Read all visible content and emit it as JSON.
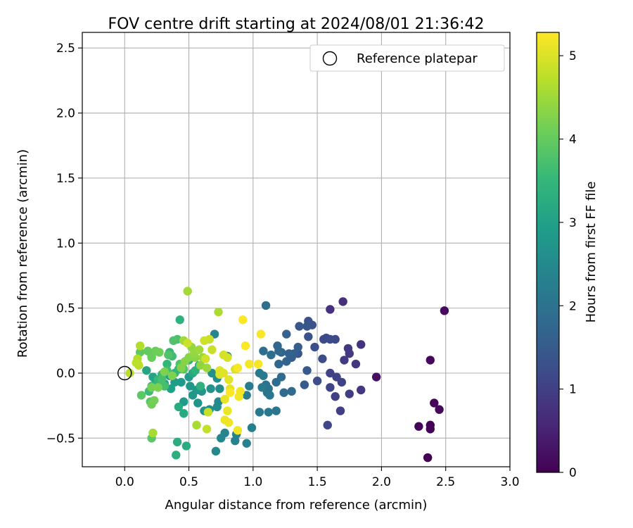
{
  "chart_data": {
    "type": "scatter",
    "title": "FOV centre drift starting at 2024/08/01 21:36:42",
    "xlabel": "Angular distance from reference (arcmin)",
    "ylabel": "Rotation from reference (arcmin)",
    "xlim": [
      -0.33,
      3.0
    ],
    "ylim": [
      -0.72,
      2.62
    ],
    "x_ticks": [
      0.0,
      0.5,
      1.0,
      1.5,
      2.0,
      2.5,
      3.0
    ],
    "x_tick_labels": [
      "0.0",
      "0.5",
      "1.0",
      "1.5",
      "2.0",
      "2.5",
      "3.0"
    ],
    "y_ticks": [
      -0.5,
      0.0,
      0.5,
      1.0,
      1.5,
      2.0,
      2.5
    ],
    "y_tick_labels": [
      "−0.5",
      "0.0",
      "0.5",
      "1.0",
      "1.5",
      "2.0",
      "2.5"
    ],
    "grid": true,
    "legend": {
      "placement": "top-right",
      "entries": [
        "Reference platepar"
      ]
    },
    "reference_point": {
      "x": 0.0,
      "y": 0.0,
      "label": "Reference platepar"
    },
    "colorbar": {
      "label": "Hours from first FF file",
      "colormap": "viridis",
      "range": [
        0,
        5.28
      ],
      "ticks": [
        0,
        1,
        2,
        3,
        4,
        5
      ],
      "tick_labels": [
        "0",
        "1",
        "2",
        "3",
        "4",
        "5"
      ],
      "stops": [
        "#440154",
        "#482878",
        "#3e4a89",
        "#31688e",
        "#26828e",
        "#1f9e89",
        "#35b779",
        "#6ece58",
        "#b5de2b",
        "#fde725"
      ]
    },
    "series": [
      {
        "color_by": "hours",
        "points": [
          [
            2.36,
            -0.65,
            0.0
          ],
          [
            2.38,
            -0.4,
            0.02
          ],
          [
            2.38,
            -0.43,
            0.04
          ],
          [
            2.29,
            -0.41,
            0.06
          ],
          [
            2.41,
            -0.23,
            0.08
          ],
          [
            2.45,
            -0.28,
            0.1
          ],
          [
            2.38,
            0.1,
            0.12
          ],
          [
            2.49,
            0.48,
            0.14
          ],
          [
            1.96,
            -0.03,
            0.2
          ],
          [
            1.7,
            0.55,
            0.7
          ],
          [
            1.6,
            0.49,
            0.75
          ],
          [
            1.84,
            0.22,
            0.8
          ],
          [
            1.8,
            0.07,
            0.82
          ],
          [
            1.84,
            -0.13,
            0.85
          ],
          [
            1.74,
            0.19,
            0.88
          ],
          [
            1.75,
            0.15,
            0.9
          ],
          [
            1.71,
            0.1,
            0.92
          ],
          [
            1.75,
            -0.16,
            0.95
          ],
          [
            1.68,
            -0.29,
            0.97
          ],
          [
            1.64,
            -0.18,
            1.0
          ],
          [
            1.69,
            -0.07,
            1.02
          ],
          [
            1.65,
            -0.03,
            1.05
          ],
          [
            1.6,
            -0.0,
            1.07
          ],
          [
            1.6,
            -0.11,
            1.1
          ],
          [
            1.58,
            -0.4,
            1.12
          ],
          [
            1.64,
            0.26,
            1.15
          ],
          [
            1.6,
            0.26,
            1.17
          ],
          [
            1.57,
            0.27,
            1.2
          ],
          [
            1.55,
            0.26,
            1.22
          ],
          [
            1.54,
            0.11,
            1.25
          ],
          [
            1.5,
            -0.06,
            1.27
          ],
          [
            1.48,
            0.2,
            1.3
          ],
          [
            1.46,
            0.37,
            1.32
          ],
          [
            1.43,
            0.4,
            1.35
          ],
          [
            1.43,
            0.28,
            1.37
          ],
          [
            1.42,
            0.36,
            1.4
          ],
          [
            1.36,
            0.36,
            1.42
          ],
          [
            1.35,
            0.15,
            1.45
          ],
          [
            1.42,
            0.02,
            1.47
          ],
          [
            1.4,
            -0.09,
            1.5
          ],
          [
            1.35,
            0.2,
            1.55
          ],
          [
            1.32,
            0.15,
            1.58
          ],
          [
            1.3,
            0.12,
            1.6
          ],
          [
            1.26,
            0.3,
            1.63
          ],
          [
            1.28,
            0.15,
            1.65
          ],
          [
            1.26,
            0.09,
            1.68
          ],
          [
            1.22,
            0.16,
            1.7
          ],
          [
            1.19,
            0.21,
            1.72
          ],
          [
            1.2,
            0.07,
            1.75
          ],
          [
            1.2,
            0.17,
            1.77
          ],
          [
            1.3,
            -0.14,
            1.8
          ],
          [
            1.24,
            -0.15,
            1.82
          ],
          [
            1.22,
            -0.03,
            1.85
          ],
          [
            1.18,
            -0.07,
            1.87
          ],
          [
            1.14,
            0.14,
            1.9
          ],
          [
            1.1,
            0.52,
            1.92
          ],
          [
            1.08,
            0.17,
            1.95
          ],
          [
            1.11,
            -0.15,
            1.97
          ],
          [
            1.1,
            -0.09,
            2.0
          ],
          [
            1.12,
            -0.12,
            2.02
          ],
          [
            1.13,
            -0.17,
            2.05
          ],
          [
            1.18,
            -0.29,
            2.07
          ],
          [
            1.12,
            -0.3,
            2.1
          ],
          [
            1.05,
            -0.3,
            2.12
          ],
          [
            1.08,
            -0.02,
            2.15
          ],
          [
            1.05,
            0.0,
            2.17
          ],
          [
            1.07,
            -0.11,
            2.2
          ],
          [
            0.97,
            -0.1,
            2.22
          ],
          [
            0.95,
            -0.17,
            2.25
          ],
          [
            0.99,
            -0.42,
            2.27
          ],
          [
            0.95,
            -0.54,
            2.3
          ],
          [
            0.87,
            -0.47,
            2.32
          ],
          [
            0.86,
            -0.52,
            2.35
          ],
          [
            0.78,
            -0.46,
            2.38
          ],
          [
            0.7,
            0.3,
            2.42
          ],
          [
            0.75,
            -0.5,
            2.45
          ],
          [
            0.71,
            -0.6,
            2.48
          ],
          [
            0.8,
            0.13,
            2.5
          ],
          [
            0.73,
            -0.22,
            2.52
          ],
          [
            0.72,
            -0.26,
            2.55
          ],
          [
            0.74,
            -0.12,
            2.58
          ],
          [
            0.66,
            -0.28,
            2.6
          ],
          [
            0.72,
            -0.04,
            2.62
          ],
          [
            0.68,
            0.0,
            2.65
          ],
          [
            0.67,
            -0.12,
            2.68
          ],
          [
            0.62,
            -0.29,
            2.7
          ],
          [
            0.6,
            -0.14,
            2.72
          ],
          [
            0.57,
            -0.23,
            2.75
          ],
          [
            0.53,
            -0.17,
            2.78
          ],
          [
            0.56,
            -0.13,
            2.8
          ],
          [
            0.51,
            -0.1,
            2.82
          ],
          [
            0.5,
            -0.03,
            2.85
          ],
          [
            0.46,
            -0.22,
            2.88
          ],
          [
            0.44,
            -0.07,
            2.9
          ],
          [
            0.39,
            -0.07,
            2.92
          ],
          [
            0.36,
            -0.12,
            2.95
          ],
          [
            0.35,
            -0.02,
            2.97
          ],
          [
            0.31,
            -0.1,
            3.0
          ],
          [
            0.31,
            -0.08,
            3.02
          ],
          [
            0.24,
            -0.05,
            3.05
          ],
          [
            0.22,
            -0.03,
            3.07
          ],
          [
            0.17,
            0.02,
            3.1
          ],
          [
            0.58,
            0.06,
            3.12
          ],
          [
            0.53,
            0.0,
            3.15
          ],
          [
            0.46,
            -0.31,
            3.2
          ],
          [
            0.42,
            -0.26,
            3.22
          ],
          [
            0.48,
            -0.56,
            3.25
          ],
          [
            0.41,
            -0.53,
            3.27
          ],
          [
            0.4,
            -0.63,
            3.3
          ],
          [
            0.5,
            0.1,
            3.32
          ],
          [
            0.55,
            0.02,
            3.35
          ],
          [
            0.59,
            -0.1,
            3.37
          ],
          [
            0.43,
            0.41,
            3.4
          ],
          [
            0.42,
            0.03,
            3.42
          ],
          [
            0.39,
            0.0,
            3.45
          ],
          [
            0.35,
            0.16,
            3.47
          ],
          [
            0.33,
            0.07,
            3.5
          ],
          [
            0.29,
            -0.01,
            3.52
          ],
          [
            0.26,
            -0.05,
            3.55
          ],
          [
            0.21,
            -0.1,
            3.57
          ],
          [
            0.19,
            -0.14,
            3.6
          ],
          [
            0.37,
            0.13,
            3.65
          ],
          [
            0.33,
            0.02,
            3.67
          ],
          [
            0.31,
            -0.1,
            3.7
          ],
          [
            0.29,
            -0.05,
            3.72
          ],
          [
            0.41,
            0.26,
            3.75
          ],
          [
            0.38,
            0.25,
            3.77
          ],
          [
            0.34,
            0.14,
            3.8
          ],
          [
            0.43,
            0.07,
            3.82
          ],
          [
            0.46,
            0.03,
            3.85
          ],
          [
            0.2,
            -0.22,
            3.88
          ],
          [
            0.21,
            -0.5,
            3.9
          ],
          [
            0.13,
            -0.17,
            3.92
          ],
          [
            0.12,
            0.16,
            3.95
          ],
          [
            0.18,
            0.17,
            4.0
          ],
          [
            0.21,
            0.13,
            4.02
          ],
          [
            0.21,
            0.12,
            4.05
          ],
          [
            0.24,
            0.17,
            4.07
          ],
          [
            0.27,
            0.16,
            4.1
          ],
          [
            0.21,
            -0.24,
            4.12
          ],
          [
            0.23,
            -0.21,
            4.15
          ],
          [
            0.21,
            -0.11,
            4.17
          ],
          [
            0.26,
            -0.11,
            4.2
          ],
          [
            0.31,
            0.01,
            4.22
          ],
          [
            0.37,
            -0.02,
            4.25
          ],
          [
            0.44,
            0.04,
            4.27
          ],
          [
            0.47,
            0.09,
            4.3
          ],
          [
            0.5,
            0.12,
            4.32
          ],
          [
            0.55,
            0.12,
            4.35
          ],
          [
            0.59,
            0.06,
            4.37
          ],
          [
            0.52,
            0.2,
            4.4
          ],
          [
            0.54,
            0.15,
            4.42
          ],
          [
            0.61,
            0.12,
            4.45
          ],
          [
            0.64,
            0.04,
            4.47
          ],
          [
            0.58,
            0.18,
            4.5
          ],
          [
            0.46,
            0.25,
            4.52
          ],
          [
            0.49,
            0.63,
            4.55
          ],
          [
            0.22,
            -0.46,
            4.57
          ],
          [
            0.56,
            -0.4,
            4.6
          ],
          [
            0.73,
            0.47,
            4.62
          ],
          [
            0.1,
            0.11,
            4.65
          ],
          [
            0.12,
            0.21,
            4.67
          ],
          [
            0.04,
            0.0,
            4.7
          ],
          [
            0.11,
            0.06,
            4.72
          ],
          [
            0.09,
            0.08,
            4.74
          ],
          [
            0.64,
            -0.43,
            4.8
          ],
          [
            0.65,
            -0.3,
            4.82
          ],
          [
            0.68,
            0.18,
            4.84
          ],
          [
            0.66,
            0.26,
            4.86
          ],
          [
            0.49,
            0.23,
            4.88
          ],
          [
            0.62,
            0.25,
            4.9
          ],
          [
            0.63,
            0.11,
            4.92
          ],
          [
            0.77,
            0.14,
            4.94
          ],
          [
            0.8,
            0.12,
            4.96
          ],
          [
            0.86,
            0.03,
            4.98
          ],
          [
            0.74,
            -0.01,
            5.0
          ],
          [
            0.74,
            0.02,
            5.02
          ],
          [
            0.77,
            0.0,
            5.04
          ],
          [
            0.81,
            -0.05,
            5.06
          ],
          [
            0.82,
            -0.12,
            5.08
          ],
          [
            0.78,
            -0.2,
            5.1
          ],
          [
            0.8,
            -0.29,
            5.12
          ],
          [
            0.78,
            -0.36,
            5.14
          ],
          [
            0.81,
            -0.38,
            5.16
          ],
          [
            0.88,
            -0.44,
            5.18
          ],
          [
            0.89,
            -0.18,
            5.2
          ],
          [
            0.9,
            -0.14,
            5.21
          ],
          [
            0.88,
            0.04,
            5.22
          ],
          [
            0.97,
            0.07,
            5.23
          ],
          [
            1.04,
            0.07,
            5.24
          ],
          [
            1.06,
            0.3,
            5.25
          ],
          [
            0.94,
            0.21,
            5.26
          ],
          [
            0.92,
            0.41,
            5.27
          ],
          [
            0.82,
            -0.15,
            5.28
          ]
        ]
      }
    ]
  }
}
